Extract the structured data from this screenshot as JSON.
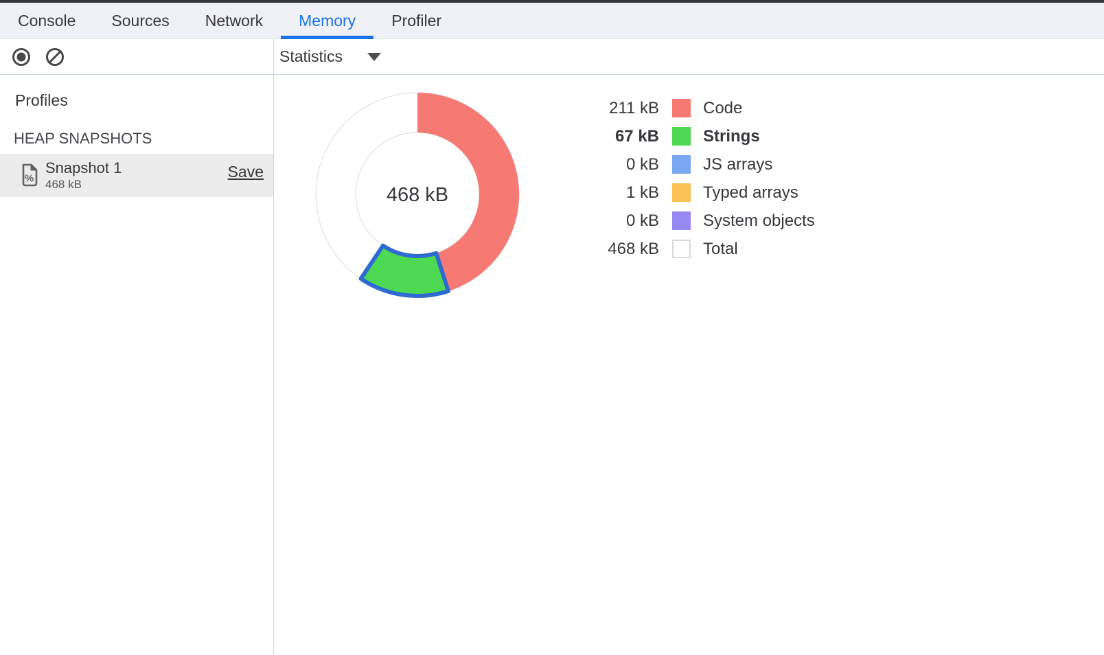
{
  "tabs": {
    "items": [
      {
        "label": "Console",
        "active": false
      },
      {
        "label": "Sources",
        "active": false
      },
      {
        "label": "Network",
        "active": false
      },
      {
        "label": "Memory",
        "active": true
      },
      {
        "label": "Profiler",
        "active": false
      }
    ],
    "active_color": "#1a73e8"
  },
  "toolbar": {
    "record_button": "record-heap-snapshot",
    "clear_button": "clear-all-profiles",
    "view_selector": "Statistics"
  },
  "sidebar": {
    "profiles_heading": "Profiles",
    "section_heading": "HEAP SNAPSHOTS",
    "snapshot": {
      "title": "Snapshot 1",
      "size": "468 kB",
      "save_label": "Save"
    }
  },
  "chart_data": {
    "type": "pie",
    "variant": "donut",
    "center_label": "468 kB",
    "total_kb": 468,
    "unit": "kB",
    "start_angle_deg": 0,
    "direction": "clockwise",
    "ring_outline": "#dcdcdc",
    "highlight_stroke": "#2d6bd2",
    "slices": [
      {
        "label": "Code",
        "value_kb": 211,
        "display": "211 kB",
        "color": "#f77973",
        "swatch_border": "transparent",
        "highlighted": false,
        "is_total": false
      },
      {
        "label": "Strings",
        "value_kb": 67,
        "display": "67 kB",
        "color": "#4dda52",
        "swatch_border": "transparent",
        "highlighted": true,
        "is_total": false
      },
      {
        "label": "JS arrays",
        "value_kb": 0,
        "display": "0 kB",
        "color": "#79a7f2",
        "swatch_border": "transparent",
        "highlighted": false,
        "is_total": false
      },
      {
        "label": "Typed arrays",
        "value_kb": 1,
        "display": "1 kB",
        "color": "#fac255",
        "swatch_border": "transparent",
        "highlighted": false,
        "is_total": false
      },
      {
        "label": "System objects",
        "value_kb": 0,
        "display": "0 kB",
        "color": "#9888f3",
        "swatch_border": "transparent",
        "highlighted": false,
        "is_total": false
      },
      {
        "label": "Total",
        "value_kb": 468,
        "display": "468 kB",
        "color": "#ffffff",
        "swatch_border": "#d9d9d9",
        "highlighted": false,
        "is_total": true
      }
    ]
  }
}
